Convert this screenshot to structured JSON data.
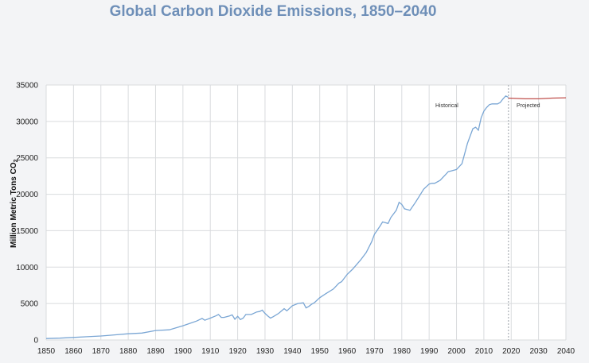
{
  "chart_data": {
    "type": "line",
    "title": "Global Carbon Dioxide Emissions, 1850–2040",
    "ylabel": "Million Metric Tons CO",
    "ylabel_subscript": "2",
    "xlabel": "",
    "xlim": [
      1850,
      2040
    ],
    "ylim": [
      0,
      35000
    ],
    "x_ticks": [
      1850,
      1860,
      1870,
      1880,
      1890,
      1900,
      1910,
      1920,
      1930,
      1940,
      1950,
      1960,
      1970,
      1980,
      1990,
      2000,
      2010,
      2020,
      2030,
      2040
    ],
    "y_ticks": [
      0,
      5000,
      10000,
      15000,
      20000,
      25000,
      30000,
      35000
    ],
    "grid": true,
    "divider_year": 2019,
    "annotations": [
      "Historical",
      "Projected"
    ],
    "colors": {
      "historical": "#7aa6d4",
      "projected": "#c0504d",
      "divider": "#9aa0a8",
      "grid": "#d9dbde"
    },
    "series": [
      {
        "key": "historical",
        "x": [
          1850,
          1855,
          1860,
          1865,
          1870,
          1875,
          1880,
          1885,
          1890,
          1895,
          1900,
          1902,
          1905,
          1907,
          1908,
          1910,
          1912,
          1913,
          1914,
          1915,
          1917,
          1918,
          1919,
          1920,
          1921,
          1922,
          1923,
          1925,
          1927,
          1928,
          1929,
          1930,
          1931,
          1932,
          1933,
          1935,
          1937,
          1938,
          1940,
          1942,
          1944,
          1945,
          1946,
          1947,
          1948,
          1950,
          1952,
          1955,
          1957,
          1958,
          1960,
          1962,
          1965,
          1967,
          1969,
          1970,
          1972,
          1973,
          1975,
          1976,
          1978,
          1979,
          1980,
          1981,
          1983,
          1985,
          1988,
          1990,
          1991,
          1992,
          1994,
          1996,
          1997,
          1998,
          2000,
          2002,
          2004,
          2006,
          2007,
          2008,
          2009,
          2010,
          2011,
          2012,
          2013,
          2014,
          2015,
          2016,
          2017,
          2018,
          2019
        ],
        "y": [
          200,
          250,
          350,
          450,
          550,
          700,
          850,
          950,
          1300,
          1400,
          1950,
          2200,
          2600,
          2950,
          2700,
          3000,
          3300,
          3500,
          3100,
          3100,
          3300,
          3450,
          2850,
          3250,
          2800,
          3000,
          3500,
          3500,
          3850,
          3900,
          4100,
          3650,
          3300,
          3000,
          3200,
          3650,
          4300,
          4000,
          4700,
          5000,
          5100,
          4400,
          4600,
          4900,
          5100,
          5800,
          6300,
          7000,
          7800,
          8000,
          9000,
          9700,
          11000,
          12000,
          13500,
          14500,
          15600,
          16200,
          16000,
          16800,
          17800,
          18900,
          18600,
          18000,
          17800,
          18900,
          20700,
          21400,
          21500,
          21500,
          21900,
          22700,
          23100,
          23200,
          23400,
          24200,
          27000,
          29000,
          29200,
          28800,
          30500,
          31400,
          31900,
          32300,
          32400,
          32400,
          32400,
          32600,
          33100,
          33500,
          33300
        ]
      },
      {
        "key": "projected",
        "x": [
          2019,
          2025,
          2030,
          2035,
          2040
        ],
        "y": [
          33200,
          33100,
          33100,
          33200,
          33250
        ]
      }
    ]
  }
}
